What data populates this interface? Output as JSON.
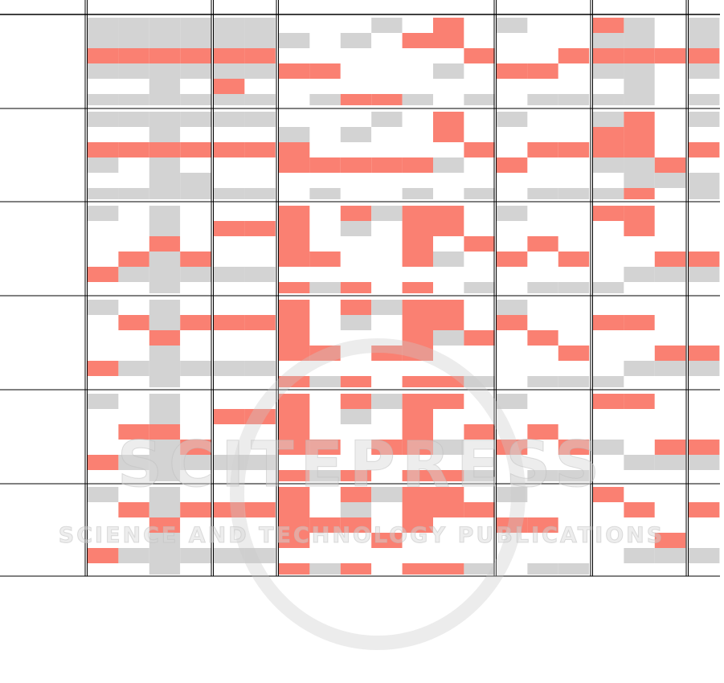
{
  "watermark": {
    "title": "SCITEPRESS",
    "subtitle": "SCIENCE AND TECHNOLOGY PUBLICATIONS"
  },
  "palette": [
    "#ffffff",
    "#d3d3d3",
    "#fa8072"
  ],
  "groups": [
    4,
    2,
    7,
    3,
    3,
    1
  ],
  "blocks": [
    [
      [
        1,
        1,
        1,
        1,
        1,
        1,
        0,
        0,
        0,
        1,
        0,
        2,
        0,
        1,
        0,
        0,
        2,
        1,
        0,
        1
      ],
      [
        1,
        1,
        1,
        1,
        1,
        1,
        1,
        0,
        1,
        0,
        2,
        2,
        0,
        0,
        0,
        0,
        1,
        1,
        0,
        1
      ],
      [
        2,
        2,
        2,
        2,
        2,
        2,
        0,
        0,
        0,
        0,
        0,
        0,
        2,
        0,
        0,
        2,
        2,
        2,
        2,
        2
      ],
      [
        1,
        1,
        1,
        1,
        1,
        1,
        2,
        2,
        0,
        0,
        0,
        1,
        0,
        2,
        2,
        0,
        1,
        1,
        0,
        1
      ],
      [
        0,
        0,
        1,
        0,
        2,
        0,
        0,
        0,
        0,
        0,
        0,
        0,
        0,
        0,
        0,
        0,
        0,
        1,
        0,
        0
      ],
      [
        1,
        1,
        1,
        1,
        1,
        1,
        0,
        1,
        2,
        2,
        1,
        0,
        1,
        0,
        1,
        1,
        1,
        1,
        0,
        1
      ]
    ],
    [
      [
        1,
        1,
        1,
        1,
        1,
        1,
        0,
        0,
        0,
        1,
        0,
        2,
        0,
        1,
        0,
        0,
        1,
        2,
        0,
        1
      ],
      [
        0,
        0,
        1,
        0,
        0,
        0,
        1,
        0,
        1,
        0,
        0,
        2,
        0,
        0,
        0,
        0,
        2,
        2,
        0,
        0
      ],
      [
        2,
        2,
        2,
        2,
        2,
        2,
        2,
        0,
        0,
        0,
        0,
        0,
        2,
        0,
        2,
        2,
        2,
        2,
        0,
        2
      ],
      [
        1,
        0,
        1,
        0,
        0,
        0,
        2,
        2,
        2,
        2,
        2,
        1,
        0,
        2,
        0,
        0,
        1,
        1,
        2,
        0
      ],
      [
        0,
        0,
        1,
        1,
        0,
        0,
        0,
        0,
        0,
        0,
        0,
        0,
        0,
        0,
        0,
        0,
        0,
        1,
        1,
        1
      ],
      [
        1,
        1,
        1,
        1,
        1,
        1,
        0,
        1,
        0,
        0,
        1,
        0,
        1,
        0,
        1,
        1,
        1,
        2,
        0,
        1
      ]
    ],
    [
      [
        1,
        0,
        1,
        0,
        0,
        0,
        2,
        0,
        2,
        1,
        2,
        2,
        0,
        1,
        0,
        0,
        2,
        2,
        0,
        0
      ],
      [
        0,
        0,
        1,
        0,
        2,
        2,
        2,
        0,
        1,
        0,
        2,
        2,
        0,
        0,
        0,
        0,
        0,
        2,
        0,
        0
      ],
      [
        0,
        0,
        2,
        0,
        0,
        0,
        2,
        0,
        0,
        0,
        2,
        0,
        2,
        0,
        2,
        0,
        0,
        0,
        0,
        0
      ],
      [
        0,
        2,
        1,
        2,
        0,
        0,
        2,
        2,
        0,
        0,
        2,
        1,
        0,
        2,
        0,
        2,
        0,
        0,
        2,
        2
      ],
      [
        2,
        1,
        1,
        1,
        1,
        1,
        0,
        0,
        0,
        0,
        0,
        0,
        0,
        0,
        0,
        0,
        0,
        1,
        1,
        1
      ],
      [
        0,
        0,
        1,
        0,
        0,
        0,
        2,
        1,
        2,
        0,
        2,
        0,
        1,
        0,
        1,
        1,
        1,
        0,
        0,
        0
      ]
    ],
    [
      [
        1,
        0,
        1,
        0,
        0,
        0,
        2,
        0,
        2,
        1,
        2,
        2,
        0,
        1,
        0,
        0,
        0,
        0,
        0,
        0
      ],
      [
        0,
        2,
        1,
        2,
        2,
        2,
        2,
        0,
        1,
        0,
        2,
        2,
        0,
        2,
        0,
        0,
        2,
        2,
        0,
        0
      ],
      [
        0,
        0,
        2,
        0,
        0,
        0,
        2,
        0,
        0,
        0,
        2,
        1,
        2,
        0,
        2,
        0,
        0,
        0,
        0,
        0
      ],
      [
        0,
        0,
        1,
        0,
        0,
        0,
        2,
        2,
        0,
        2,
        2,
        0,
        0,
        0,
        0,
        2,
        0,
        0,
        2,
        2
      ],
      [
        2,
        1,
        1,
        1,
        1,
        1,
        0,
        0,
        0,
        0,
        0,
        0,
        0,
        0,
        0,
        0,
        0,
        1,
        1,
        1
      ],
      [
        0,
        0,
        1,
        0,
        0,
        0,
        2,
        1,
        2,
        0,
        2,
        2,
        1,
        0,
        1,
        1,
        1,
        0,
        0,
        0
      ]
    ],
    [
      [
        1,
        0,
        1,
        0,
        0,
        0,
        2,
        0,
        2,
        1,
        2,
        2,
        0,
        1,
        0,
        0,
        2,
        2,
        0,
        0
      ],
      [
        0,
        0,
        1,
        0,
        2,
        2,
        2,
        0,
        1,
        0,
        2,
        0,
        0,
        0,
        0,
        0,
        0,
        0,
        0,
        0
      ],
      [
        0,
        2,
        2,
        0,
        0,
        0,
        2,
        0,
        0,
        0,
        2,
        0,
        2,
        0,
        2,
        0,
        0,
        0,
        0,
        0
      ],
      [
        0,
        0,
        1,
        2,
        0,
        0,
        2,
        2,
        0,
        2,
        2,
        1,
        0,
        2,
        0,
        2,
        1,
        0,
        2,
        2
      ],
      [
        2,
        1,
        1,
        1,
        1,
        1,
        0,
        0,
        0,
        0,
        0,
        0,
        0,
        0,
        0,
        0,
        0,
        1,
        1,
        1
      ],
      [
        0,
        0,
        1,
        0,
        0,
        0,
        2,
        1,
        2,
        0,
        2,
        2,
        1,
        0,
        1,
        1,
        0,
        0,
        0,
        0
      ]
    ],
    [
      [
        1,
        0,
        1,
        0,
        0,
        0,
        2,
        0,
        2,
        1,
        2,
        2,
        0,
        1,
        0,
        0,
        2,
        0,
        0,
        0
      ],
      [
        0,
        2,
        1,
        2,
        2,
        2,
        2,
        0,
        1,
        0,
        2,
        2,
        2,
        0,
        0,
        0,
        0,
        2,
        0,
        2
      ],
      [
        0,
        0,
        2,
        0,
        0,
        0,
        2,
        2,
        2,
        0,
        2,
        0,
        0,
        2,
        2,
        0,
        0,
        0,
        0,
        0
      ],
      [
        0,
        0,
        1,
        0,
        0,
        0,
        2,
        0,
        0,
        2,
        0,
        0,
        0,
        0,
        0,
        0,
        0,
        0,
        2,
        0
      ],
      [
        2,
        1,
        1,
        1,
        1,
        1,
        0,
        0,
        0,
        0,
        0,
        0,
        0,
        0,
        0,
        0,
        0,
        1,
        1,
        1
      ],
      [
        0,
        0,
        1,
        0,
        0,
        0,
        2,
        1,
        2,
        0,
        2,
        2,
        1,
        0,
        1,
        1,
        0,
        0,
        0,
        0
      ]
    ]
  ]
}
